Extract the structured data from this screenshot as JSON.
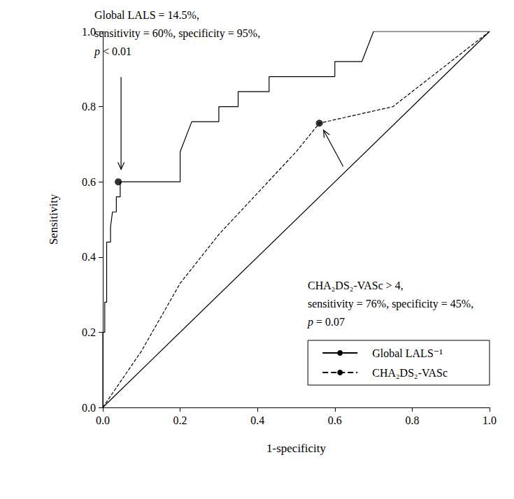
{
  "chart_data": {
    "type": "line",
    "x_label": "1-specificity",
    "y_label": "Sensitivity",
    "xlim": [
      0,
      1
    ],
    "ylim": [
      0,
      1
    ],
    "xticks": [
      {
        "value": 0,
        "label": "0.0"
      },
      0.2,
      0.4,
      0.6,
      0.8,
      {
        "value": 1,
        "label": "1.0"
      }
    ],
    "yticks": [
      {
        "value": 0,
        "label": "0.0"
      },
      0.2,
      0.4,
      0.6,
      0.8,
      {
        "value": 1,
        "label": "1.0"
      }
    ],
    "grid": false,
    "legend": "bottom right",
    "series": [
      {
        "name": "Global LALS⁻¹",
        "color": "#000000",
        "line_style": "solid",
        "marker": "none",
        "x": [
          0,
          0,
          0.005,
          0.005,
          0.01,
          0.01,
          0.02,
          0.02,
          0.025,
          0.035,
          0.035,
          0.045,
          0.045,
          0.2,
          0.2,
          0.23,
          0.3,
          0.3,
          0.35,
          0.35,
          0.43,
          0.43,
          0.6,
          0.6,
          0.67,
          0.7,
          1
        ],
        "values": [
          0,
          0.2,
          0.2,
          0.28,
          0.28,
          0.44,
          0.44,
          0.48,
          0.52,
          0.52,
          0.56,
          0.56,
          0.6,
          0.6,
          0.68,
          0.76,
          0.76,
          0.8,
          0.8,
          0.84,
          0.84,
          0.88,
          0.88,
          0.92,
          0.92,
          1,
          1
        ],
        "cutoff": {
          "x": 0.04,
          "y": 0.6
        },
        "annotation": [
          "Global LALS = 14.5%,",
          "sensitivity = 60%, specificity = 95%,",
          "p < 0.01"
        ]
      },
      {
        "name": "CHA₂DS₂-VASc",
        "color": "#000000",
        "line_style": "dashed",
        "marker": "none",
        "x": [
          0,
          0.1,
          0.2,
          0.3,
          0.4,
          0.5,
          0.56,
          0.75,
          1
        ],
        "values": [
          0,
          0.15,
          0.33,
          0.46,
          0.57,
          0.68,
          0.756,
          0.8,
          1
        ],
        "cutoff": {
          "x": 0.56,
          "y": 0.756
        },
        "annotation": [
          "CHA₂DS₂-VASc > 4,",
          "sensitivity = 76%, specificity = 45%,",
          "p = 0.07"
        ]
      },
      {
        "color": "#000000",
        "line_style": "solid",
        "marker": "none",
        "x": [
          0,
          1
        ],
        "values": [
          0,
          1
        ]
      }
    ]
  }
}
